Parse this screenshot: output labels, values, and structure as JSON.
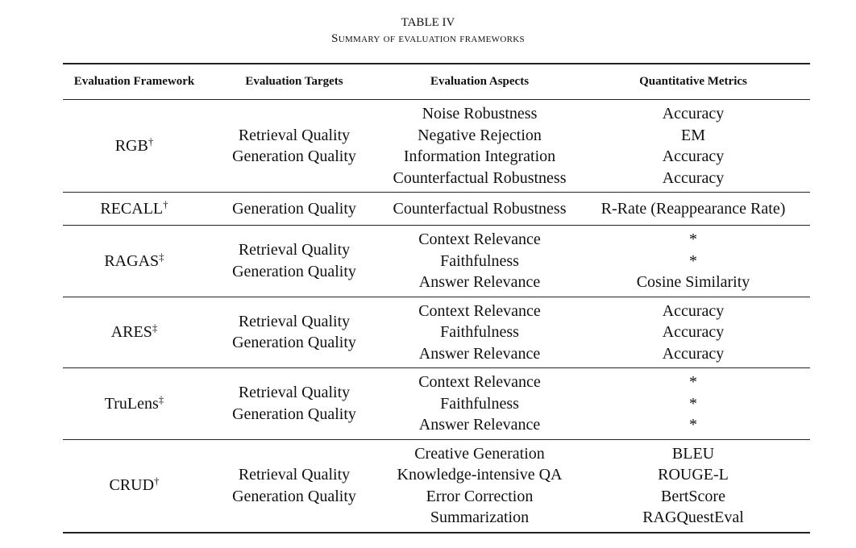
{
  "header": {
    "title": "TABLE IV",
    "subtitle": "Summary of evaluation frameworks"
  },
  "table": {
    "columns": [
      "Evaluation Framework",
      "Evaluation Targets",
      "Evaluation Aspects",
      "Quantitative Metrics"
    ],
    "rows": [
      {
        "framework": "RGB",
        "marker": "†",
        "targets": [
          "Retrieval Quality",
          "Generation Quality"
        ],
        "aspects": [
          "Noise Robustness",
          "Negative Rejection",
          "Information Integration",
          "Counterfactual Robustness"
        ],
        "metrics": [
          "Accuracy",
          "EM",
          "Accuracy",
          "Accuracy"
        ]
      },
      {
        "framework": "RECALL",
        "marker": "†",
        "targets": [
          "Generation Quality"
        ],
        "aspects": [
          "Counterfactual Robustness"
        ],
        "metrics": [
          "R-Rate (Reappearance Rate)"
        ]
      },
      {
        "framework": "RAGAS",
        "marker": "‡",
        "targets": [
          "Retrieval Quality",
          "Generation Quality"
        ],
        "aspects": [
          "Context Relevance",
          "Faithfulness",
          "Answer Relevance"
        ],
        "metrics": [
          "*",
          "*",
          "Cosine Similarity"
        ]
      },
      {
        "framework": "ARES",
        "marker": "‡",
        "targets": [
          "Retrieval Quality",
          "Generation Quality"
        ],
        "aspects": [
          "Context Relevance",
          "Faithfulness",
          "Answer Relevance"
        ],
        "metrics": [
          "Accuracy",
          "Accuracy",
          "Accuracy"
        ]
      },
      {
        "framework": "TruLens",
        "marker": "‡",
        "targets": [
          "Retrieval Quality",
          "Generation Quality"
        ],
        "aspects": [
          "Context Relevance",
          "Faithfulness",
          "Answer Relevance"
        ],
        "metrics": [
          "*",
          "*",
          "*"
        ]
      },
      {
        "framework": "CRUD",
        "marker": "†",
        "targets": [
          "Retrieval Quality",
          "Generation Quality"
        ],
        "aspects": [
          "Creative Generation",
          "Knowledge-intensive QA",
          "Error Correction",
          "Summarization"
        ],
        "metrics": [
          "BLEU",
          "ROUGE-L",
          "BertScore",
          "RAGQuestEval"
        ]
      }
    ]
  }
}
